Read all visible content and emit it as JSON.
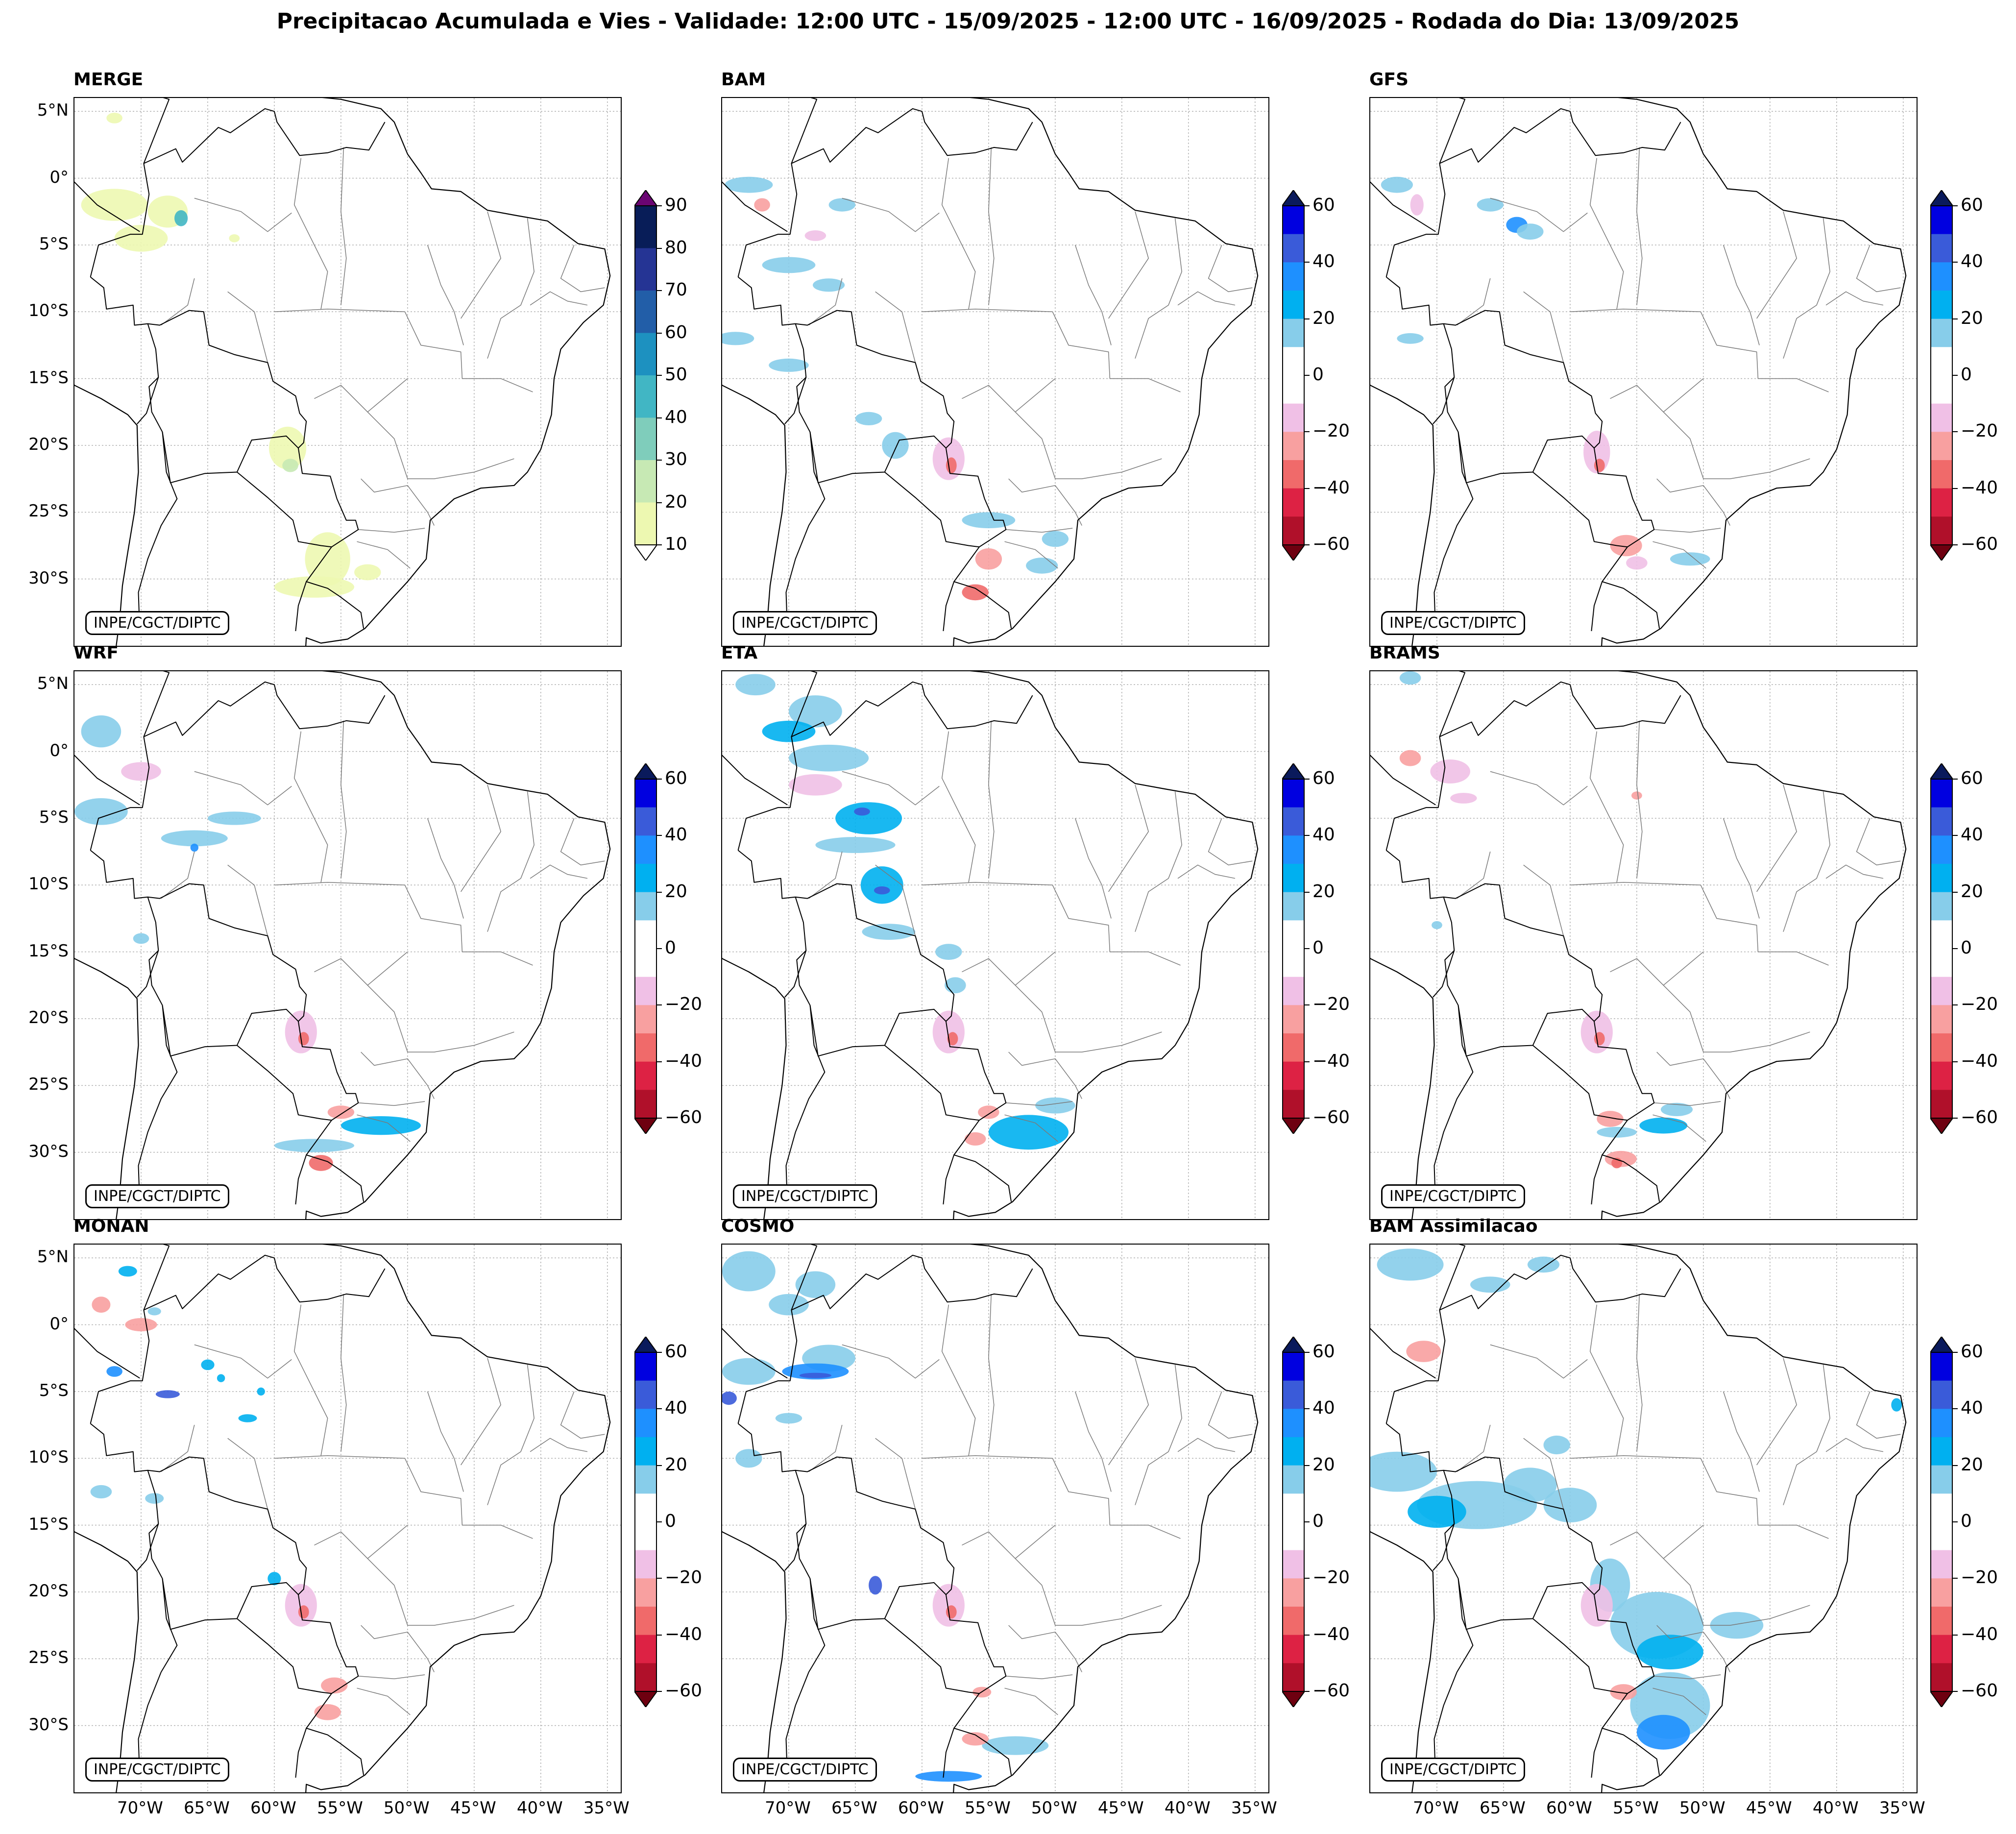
{
  "title": "Precipitacao Acumulada e Vies - Validade: 12:00 UTC - 15/09/2025 - 12:00 UTC - 16/09/2025 - Rodada do Dia: 13/09/2025",
  "credit": "INPE/CGCT/DIPTC",
  "latitude_labels": [
    "5°N",
    "0°",
    "5°S",
    "10°S",
    "15°S",
    "20°S",
    "25°S",
    "30°S"
  ],
  "longitude_labels": [
    "70°W",
    "65°W",
    "60°W",
    "55°W",
    "50°W",
    "45°W",
    "40°W",
    "35°W"
  ],
  "colorbars": {
    "precip": {
      "ticks": [
        "90",
        "80",
        "70",
        "60",
        "50",
        "40",
        "30",
        "20",
        "10"
      ],
      "colors": [
        "#081d58",
        "#253494",
        "#225ea8",
        "#1d91c0",
        "#41b6c4",
        "#7fcdbb",
        "#c7e9b4",
        "#edf8b1"
      ],
      "over": "#6a0572",
      "under": "#ffffff"
    },
    "bias": {
      "ticks": [
        "60",
        "40",
        "20",
        "0",
        "−20",
        "−40",
        "−60"
      ],
      "colors": [
        "#0000e0",
        "#3a5bd9",
        "#1e90ff",
        "#00b0f0",
        "#87cdea",
        "#ffffff",
        "#ffffff",
        "#f0c0e6",
        "#f8a0a0",
        "#f06a6a",
        "#dd2244",
        "#b0102a"
      ],
      "over": "#0a1a5c",
      "under": "#6e0010"
    }
  },
  "chart_data": [
    {
      "type": "heatmap",
      "title": "MERGE",
      "variable": "precipitation (mm)",
      "colorbar_range": [
        10,
        90
      ],
      "extent_lon": [
        -75,
        -34
      ],
      "extent_lat": [
        -35,
        6
      ]
    },
    {
      "type": "heatmap",
      "title": "BAM",
      "variable": "bias (mm)",
      "colorbar_range": [
        -60,
        60
      ],
      "extent_lon": [
        -75,
        -34
      ],
      "extent_lat": [
        -35,
        6
      ]
    },
    {
      "type": "heatmap",
      "title": "GFS",
      "variable": "bias (mm)",
      "colorbar_range": [
        -60,
        60
      ],
      "extent_lon": [
        -75,
        -34
      ],
      "extent_lat": [
        -35,
        6
      ]
    },
    {
      "type": "heatmap",
      "title": "WRF",
      "variable": "bias (mm)",
      "colorbar_range": [
        -60,
        60
      ],
      "extent_lon": [
        -75,
        -34
      ],
      "extent_lat": [
        -35,
        6
      ]
    },
    {
      "type": "heatmap",
      "title": "ETA",
      "variable": "bias (mm)",
      "colorbar_range": [
        -60,
        60
      ],
      "extent_lon": [
        -75,
        -34
      ],
      "extent_lat": [
        -35,
        6
      ]
    },
    {
      "type": "heatmap",
      "title": "BRAMS",
      "variable": "bias (mm)",
      "colorbar_range": [
        -60,
        60
      ],
      "extent_lon": [
        -75,
        -34
      ],
      "extent_lat": [
        -35,
        6
      ]
    },
    {
      "type": "heatmap",
      "title": "MONAN",
      "variable": "bias (mm)",
      "colorbar_range": [
        -60,
        60
      ],
      "extent_lon": [
        -75,
        -34
      ],
      "extent_lat": [
        -35,
        6
      ]
    },
    {
      "type": "heatmap",
      "title": "COSMO",
      "variable": "bias (mm)",
      "colorbar_range": [
        -60,
        60
      ],
      "extent_lon": [
        -75,
        -34
      ],
      "extent_lat": [
        -35,
        6
      ]
    },
    {
      "type": "heatmap",
      "title": "BAM Assimilacao",
      "variable": "bias (mm)",
      "colorbar_range": [
        -60,
        60
      ],
      "extent_lon": [
        -75,
        -34
      ],
      "extent_lat": [
        -35,
        6
      ]
    }
  ]
}
